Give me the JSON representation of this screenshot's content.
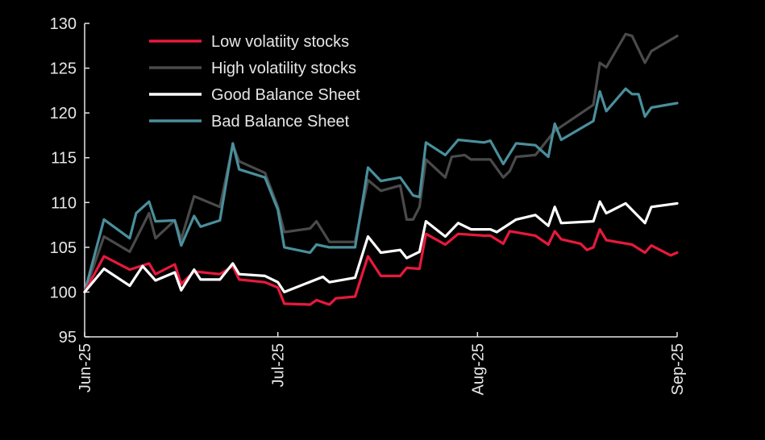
{
  "chart_data": {
    "type": "line",
    "title": "",
    "xlabel": "",
    "ylabel": "",
    "ylim": [
      95,
      130
    ],
    "xlim": [
      "2025-06-01",
      "2025-09-01"
    ],
    "y_ticks": [
      95,
      100,
      105,
      110,
      115,
      120,
      125,
      130
    ],
    "x_ticks": [
      {
        "date": "2025-06-01",
        "label": "Jun-25"
      },
      {
        "date": "2025-07-01",
        "label": "Jul-25"
      },
      {
        "date": "2025-08-01",
        "label": "Aug-25"
      },
      {
        "date": "2025-09-01",
        "label": "Sep-25"
      }
    ],
    "grid": false,
    "legend_position": "top-left",
    "background": "#000000",
    "series": [
      {
        "name": "Low volatiity stocks",
        "color": "#e8193c",
        "points": [
          [
            "2025-06-01",
            100
          ],
          [
            "2025-06-04",
            104.0
          ],
          [
            "2025-06-08",
            102.5
          ],
          [
            "2025-06-11",
            103.2
          ],
          [
            "2025-06-12",
            102.0
          ],
          [
            "2025-06-15",
            103.1
          ],
          [
            "2025-06-16",
            100.9
          ],
          [
            "2025-06-18",
            102.3
          ],
          [
            "2025-06-22",
            102.0
          ],
          [
            "2025-06-24",
            102.9
          ],
          [
            "2025-06-25",
            101.4
          ],
          [
            "2025-06-29",
            101.1
          ],
          [
            "2025-07-01",
            100.5
          ],
          [
            "2025-07-02",
            98.7
          ],
          [
            "2025-07-06",
            98.6
          ],
          [
            "2025-07-07",
            99.1
          ],
          [
            "2025-07-09",
            98.6
          ],
          [
            "2025-07-10",
            99.3
          ],
          [
            "2025-07-13",
            99.5
          ],
          [
            "2025-07-15",
            104.0
          ],
          [
            "2025-07-17",
            101.8
          ],
          [
            "2025-07-20",
            101.8
          ],
          [
            "2025-07-21",
            102.7
          ],
          [
            "2025-07-23",
            102.6
          ],
          [
            "2025-07-24",
            106.5
          ],
          [
            "2025-07-27",
            105.3
          ],
          [
            "2025-07-29",
            106.5
          ],
          [
            "2025-08-02",
            106.3
          ],
          [
            "2025-08-03",
            106.3
          ],
          [
            "2025-08-05",
            105.4
          ],
          [
            "2025-08-06",
            106.8
          ],
          [
            "2025-08-10",
            106.3
          ],
          [
            "2025-08-12",
            105.3
          ],
          [
            "2025-08-13",
            106.8
          ],
          [
            "2025-08-14",
            105.9
          ],
          [
            "2025-08-17",
            105.4
          ],
          [
            "2025-08-18",
            104.7
          ],
          [
            "2025-08-19",
            105.0
          ],
          [
            "2025-08-20",
            107.0
          ],
          [
            "2025-08-21",
            105.8
          ],
          [
            "2025-08-25",
            105.3
          ],
          [
            "2025-08-27",
            104.4
          ],
          [
            "2025-08-28",
            105.2
          ],
          [
            "2025-08-31",
            104.1
          ],
          [
            "2025-09-01",
            104.4
          ]
        ]
      },
      {
        "name": "High volatility stocks",
        "color": "#4a4a4a",
        "points": [
          [
            "2025-06-01",
            100
          ],
          [
            "2025-06-04",
            106.2
          ],
          [
            "2025-06-08",
            104.5
          ],
          [
            "2025-06-11",
            108.8
          ],
          [
            "2025-06-12",
            106.0
          ],
          [
            "2025-06-15",
            108.0
          ],
          [
            "2025-06-16",
            105.9
          ],
          [
            "2025-06-18",
            110.7
          ],
          [
            "2025-06-22",
            109.5
          ],
          [
            "2025-06-24",
            116.4
          ],
          [
            "2025-06-25",
            114.6
          ],
          [
            "2025-06-29",
            113.3
          ],
          [
            "2025-07-01",
            109.5
          ],
          [
            "2025-07-02",
            106.7
          ],
          [
            "2025-07-06",
            107.1
          ],
          [
            "2025-07-07",
            107.9
          ],
          [
            "2025-07-09",
            105.6
          ],
          [
            "2025-07-13",
            105.6
          ],
          [
            "2025-07-15",
            112.5
          ],
          [
            "2025-07-17",
            111.3
          ],
          [
            "2025-07-20",
            111.9
          ],
          [
            "2025-07-21",
            108.1
          ],
          [
            "2025-07-22",
            108.1
          ],
          [
            "2025-07-23",
            109.5
          ],
          [
            "2025-07-24",
            114.8
          ],
          [
            "2025-07-27",
            112.8
          ],
          [
            "2025-07-28",
            115.1
          ],
          [
            "2025-07-30",
            115.3
          ],
          [
            "2025-07-31",
            114.8
          ],
          [
            "2025-08-03",
            114.8
          ],
          [
            "2025-08-05",
            112.8
          ],
          [
            "2025-08-06",
            113.5
          ],
          [
            "2025-08-07",
            115.1
          ],
          [
            "2025-08-10",
            115.3
          ],
          [
            "2025-08-13",
            118.0
          ],
          [
            "2025-08-19",
            120.9
          ],
          [
            "2025-08-20",
            125.6
          ],
          [
            "2025-08-21",
            125.1
          ],
          [
            "2025-08-24",
            128.8
          ],
          [
            "2025-08-25",
            128.6
          ],
          [
            "2025-08-27",
            125.6
          ],
          [
            "2025-08-28",
            126.9
          ],
          [
            "2025-09-01",
            128.6
          ]
        ]
      },
      {
        "name": "Good Balance Sheet",
        "color": "#ffffff",
        "points": [
          [
            "2025-06-01",
            100
          ],
          [
            "2025-06-04",
            102.6
          ],
          [
            "2025-06-08",
            100.7
          ],
          [
            "2025-06-10",
            102.9
          ],
          [
            "2025-06-12",
            101.3
          ],
          [
            "2025-06-15",
            102.2
          ],
          [
            "2025-06-16",
            100.2
          ],
          [
            "2025-06-18",
            102.5
          ],
          [
            "2025-06-19",
            101.4
          ],
          [
            "2025-06-22",
            101.4
          ],
          [
            "2025-06-24",
            103.2
          ],
          [
            "2025-06-25",
            102.0
          ],
          [
            "2025-06-29",
            101.8
          ],
          [
            "2025-07-01",
            101.1
          ],
          [
            "2025-07-02",
            100.0
          ],
          [
            "2025-07-08",
            101.7
          ],
          [
            "2025-07-09",
            101.1
          ],
          [
            "2025-07-13",
            101.6
          ],
          [
            "2025-07-15",
            106.2
          ],
          [
            "2025-07-17",
            104.4
          ],
          [
            "2025-07-20",
            104.7
          ],
          [
            "2025-07-21",
            103.8
          ],
          [
            "2025-07-23",
            104.5
          ],
          [
            "2025-07-24",
            107.9
          ],
          [
            "2025-07-27",
            106.2
          ],
          [
            "2025-07-29",
            107.7
          ],
          [
            "2025-07-31",
            107.0
          ],
          [
            "2025-08-03",
            107.0
          ],
          [
            "2025-08-04",
            106.7
          ],
          [
            "2025-08-07",
            108.1
          ],
          [
            "2025-08-10",
            108.6
          ],
          [
            "2025-08-12",
            107.4
          ],
          [
            "2025-08-13",
            109.5
          ],
          [
            "2025-08-14",
            107.7
          ],
          [
            "2025-08-19",
            107.9
          ],
          [
            "2025-08-20",
            110.1
          ],
          [
            "2025-08-21",
            108.8
          ],
          [
            "2025-08-24",
            109.9
          ],
          [
            "2025-08-27",
            107.7
          ],
          [
            "2025-08-28",
            109.5
          ],
          [
            "2025-09-01",
            109.9
          ]
        ]
      },
      {
        "name": "Bad Balance Sheet",
        "color": "#4a8f9b",
        "points": [
          [
            "2025-06-01",
            100
          ],
          [
            "2025-06-04",
            108.1
          ],
          [
            "2025-06-08",
            106.0
          ],
          [
            "2025-06-09",
            108.8
          ],
          [
            "2025-06-11",
            110.1
          ],
          [
            "2025-06-12",
            107.9
          ],
          [
            "2025-06-15",
            108.0
          ],
          [
            "2025-06-16",
            105.2
          ],
          [
            "2025-06-18",
            108.5
          ],
          [
            "2025-06-19",
            107.3
          ],
          [
            "2025-06-22",
            108.0
          ],
          [
            "2025-06-24",
            116.6
          ],
          [
            "2025-06-25",
            113.7
          ],
          [
            "2025-06-29",
            112.8
          ],
          [
            "2025-07-01",
            109.2
          ],
          [
            "2025-07-02",
            105.0
          ],
          [
            "2025-07-06",
            104.4
          ],
          [
            "2025-07-07",
            105.3
          ],
          [
            "2025-07-09",
            105.0
          ],
          [
            "2025-07-13",
            105.0
          ],
          [
            "2025-07-15",
            113.9
          ],
          [
            "2025-07-17",
            112.4
          ],
          [
            "2025-07-20",
            112.8
          ],
          [
            "2025-07-22",
            110.8
          ],
          [
            "2025-07-23",
            110.6
          ],
          [
            "2025-07-24",
            116.7
          ],
          [
            "2025-07-27",
            115.3
          ],
          [
            "2025-07-29",
            117.0
          ],
          [
            "2025-08-02",
            116.7
          ],
          [
            "2025-08-03",
            116.9
          ],
          [
            "2025-08-05",
            114.3
          ],
          [
            "2025-08-07",
            116.6
          ],
          [
            "2025-08-10",
            116.4
          ],
          [
            "2025-08-12",
            115.1
          ],
          [
            "2025-08-13",
            118.8
          ],
          [
            "2025-08-14",
            117.0
          ],
          [
            "2025-08-19",
            119.1
          ],
          [
            "2025-08-20",
            122.4
          ],
          [
            "2025-08-21",
            120.2
          ],
          [
            "2025-08-24",
            122.7
          ],
          [
            "2025-08-25",
            122.1
          ],
          [
            "2025-08-26",
            122.1
          ],
          [
            "2025-08-27",
            119.6
          ],
          [
            "2025-08-28",
            120.6
          ],
          [
            "2025-09-01",
            121.1
          ]
        ]
      }
    ]
  }
}
